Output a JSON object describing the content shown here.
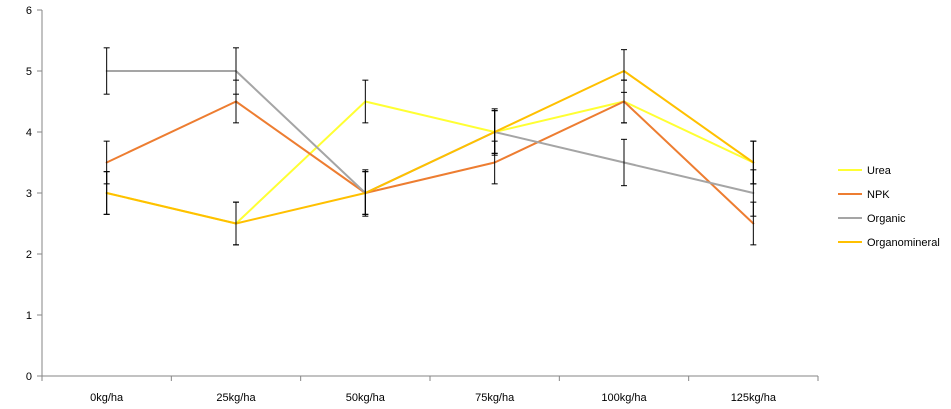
{
  "chart_data": {
    "type": "line",
    "title": "",
    "xlabel": "",
    "ylabel": "",
    "categories": [
      "0kg/ha",
      "25kg/ha",
      "50kg/ha",
      "75kg/ha",
      "100kg/ha",
      "125kg/ha"
    ],
    "ylim": [
      0,
      6
    ],
    "yticks": [
      "0",
      "1",
      "2",
      "3",
      "4",
      "5",
      "6"
    ],
    "grid": false,
    "legend_position": "right",
    "series": [
      {
        "name": "Urea",
        "color": "#FFFF33",
        "values": [
          3.0,
          2.5,
          4.5,
          4.0,
          4.5,
          3.5
        ],
        "error": [
          0.35,
          0.35,
          0.35,
          0.35,
          0.35,
          0.35
        ]
      },
      {
        "name": "NPK",
        "color": "#ED7D31",
        "values": [
          3.5,
          4.5,
          3.0,
          3.5,
          4.5,
          2.5
        ],
        "error": [
          0.35,
          0.35,
          0.35,
          0.35,
          0.35,
          0.35
        ]
      },
      {
        "name": "Organic",
        "color": "#A5A5A5",
        "values": [
          5.0,
          5.0,
          3.0,
          4.0,
          3.5,
          3.0
        ],
        "error": [
          0.38,
          0.38,
          0.38,
          0.38,
          0.38,
          0.38
        ]
      },
      {
        "name": "Organomineral",
        "color": "#FFC000",
        "values": [
          3.0,
          2.5,
          3.0,
          4.0,
          5.0,
          3.5
        ],
        "error": [
          0.35,
          0.35,
          0.35,
          0.35,
          0.35,
          0.35
        ]
      }
    ]
  }
}
